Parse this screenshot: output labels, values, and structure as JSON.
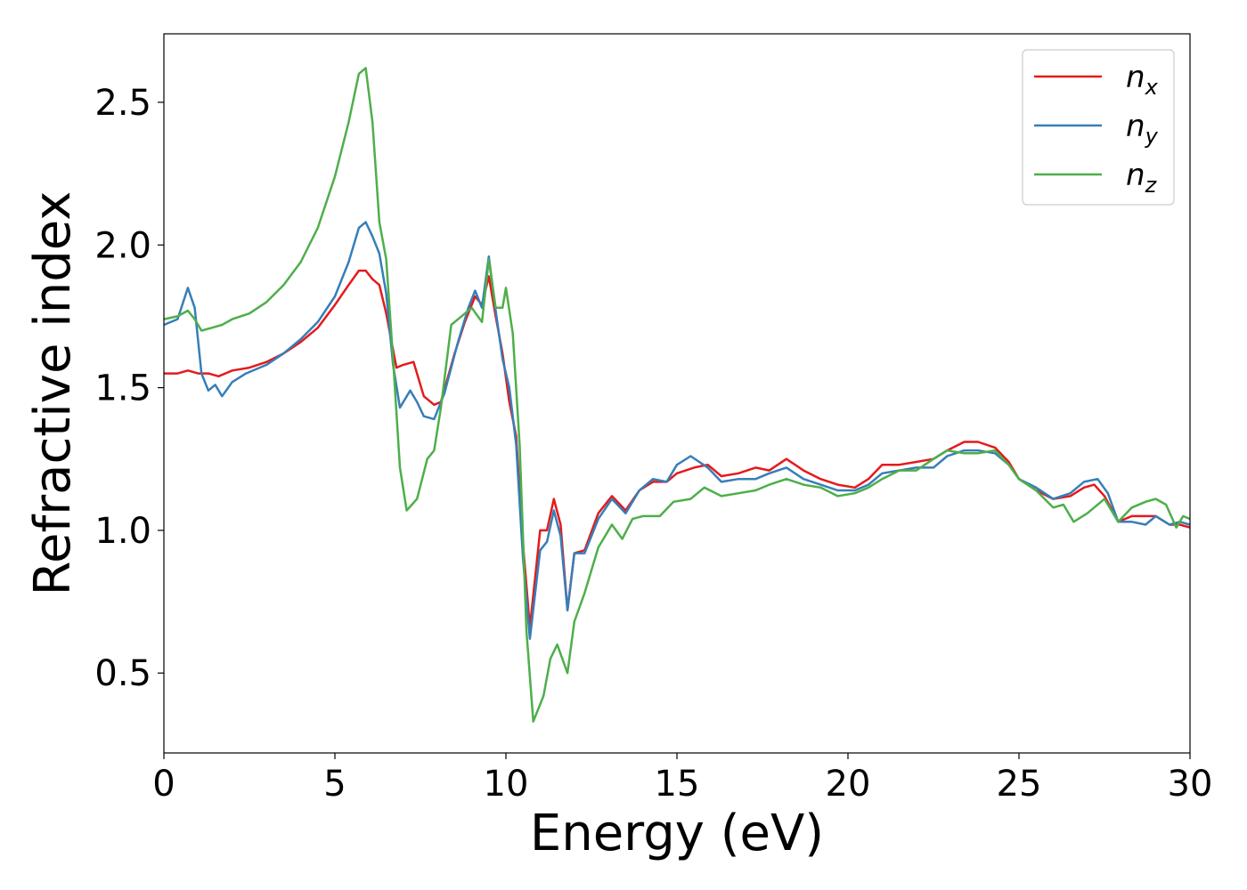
{
  "chart_data": {
    "type": "line",
    "title": "",
    "xlabel": "Energy (eV)",
    "ylabel": "Refractive index",
    "xlim": [
      0,
      30
    ],
    "ylim": [
      0.22,
      2.74
    ],
    "xticks": [
      0,
      5,
      10,
      15,
      20,
      25,
      30
    ],
    "xtick_labels": [
      "0",
      "5",
      "10",
      "15",
      "20",
      "25",
      "30"
    ],
    "yticks": [
      0.5,
      1.0,
      1.5,
      2.0,
      2.5
    ],
    "ytick_labels": [
      "0.5",
      "1.0",
      "1.5",
      "2.0",
      "2.5"
    ],
    "grid": false,
    "legend_position": "top-right",
    "series": [
      {
        "name": "n",
        "subscript": "x",
        "color": "#e41a1c",
        "points": [
          [
            0,
            1.55
          ],
          [
            0.4,
            1.55
          ],
          [
            0.7,
            1.56
          ],
          [
            1.0,
            1.55
          ],
          [
            1.3,
            1.55
          ],
          [
            1.6,
            1.54
          ],
          [
            2.0,
            1.56
          ],
          [
            2.5,
            1.57
          ],
          [
            3.0,
            1.59
          ],
          [
            3.5,
            1.62
          ],
          [
            4.0,
            1.66
          ],
          [
            4.5,
            1.71
          ],
          [
            5.0,
            1.79
          ],
          [
            5.4,
            1.86
          ],
          [
            5.7,
            1.91
          ],
          [
            5.9,
            1.91
          ],
          [
            6.1,
            1.88
          ],
          [
            6.3,
            1.86
          ],
          [
            6.5,
            1.76
          ],
          [
            6.8,
            1.57
          ],
          [
            7.0,
            1.58
          ],
          [
            7.3,
            1.59
          ],
          [
            7.6,
            1.47
          ],
          [
            7.9,
            1.44
          ],
          [
            8.1,
            1.45
          ],
          [
            8.5,
            1.62
          ],
          [
            8.8,
            1.73
          ],
          [
            9.1,
            1.82
          ],
          [
            9.3,
            1.79
          ],
          [
            9.5,
            1.89
          ],
          [
            9.7,
            1.75
          ],
          [
            9.9,
            1.62
          ],
          [
            10.1,
            1.45
          ],
          [
            10.3,
            1.33
          ],
          [
            10.5,
            0.95
          ],
          [
            10.7,
            0.66
          ],
          [
            11.0,
            1.0
          ],
          [
            11.2,
            1.0
          ],
          [
            11.4,
            1.11
          ],
          [
            11.6,
            1.02
          ],
          [
            11.8,
            0.72
          ],
          [
            12.0,
            0.92
          ],
          [
            12.3,
            0.93
          ],
          [
            12.7,
            1.06
          ],
          [
            13.1,
            1.12
          ],
          [
            13.5,
            1.07
          ],
          [
            13.9,
            1.14
          ],
          [
            14.3,
            1.17
          ],
          [
            14.7,
            1.17
          ],
          [
            15.0,
            1.2
          ],
          [
            15.5,
            1.22
          ],
          [
            15.9,
            1.23
          ],
          [
            16.3,
            1.19
          ],
          [
            16.8,
            1.2
          ],
          [
            17.3,
            1.22
          ],
          [
            17.7,
            1.21
          ],
          [
            18.2,
            1.25
          ],
          [
            18.7,
            1.21
          ],
          [
            19.2,
            1.18
          ],
          [
            19.7,
            1.16
          ],
          [
            20.2,
            1.15
          ],
          [
            20.6,
            1.18
          ],
          [
            21.0,
            1.23
          ],
          [
            21.5,
            1.23
          ],
          [
            22.0,
            1.24
          ],
          [
            22.5,
            1.25
          ],
          [
            22.9,
            1.28
          ],
          [
            23.4,
            1.31
          ],
          [
            23.8,
            1.31
          ],
          [
            24.3,
            1.29
          ],
          [
            24.7,
            1.24
          ],
          [
            25.0,
            1.18
          ],
          [
            25.5,
            1.14
          ],
          [
            26.0,
            1.11
          ],
          [
            26.5,
            1.12
          ],
          [
            26.9,
            1.15
          ],
          [
            27.2,
            1.16
          ],
          [
            27.5,
            1.12
          ],
          [
            27.9,
            1.03
          ],
          [
            28.3,
            1.05
          ],
          [
            28.7,
            1.05
          ],
          [
            29.0,
            1.05
          ],
          [
            29.4,
            1.02
          ],
          [
            29.7,
            1.02
          ],
          [
            30.0,
            1.01
          ]
        ]
      },
      {
        "name": "n",
        "subscript": "y",
        "color": "#377eb8",
        "points": [
          [
            0,
            1.72
          ],
          [
            0.4,
            1.74
          ],
          [
            0.7,
            1.85
          ],
          [
            0.9,
            1.78
          ],
          [
            1.1,
            1.55
          ],
          [
            1.3,
            1.49
          ],
          [
            1.5,
            1.51
          ],
          [
            1.7,
            1.47
          ],
          [
            2.0,
            1.52
          ],
          [
            2.4,
            1.55
          ],
          [
            3.0,
            1.58
          ],
          [
            3.5,
            1.62
          ],
          [
            4.0,
            1.67
          ],
          [
            4.5,
            1.73
          ],
          [
            5.0,
            1.82
          ],
          [
            5.4,
            1.94
          ],
          [
            5.7,
            2.06
          ],
          [
            5.9,
            2.08
          ],
          [
            6.1,
            2.03
          ],
          [
            6.3,
            1.97
          ],
          [
            6.5,
            1.83
          ],
          [
            6.7,
            1.58
          ],
          [
            6.9,
            1.43
          ],
          [
            7.2,
            1.49
          ],
          [
            7.4,
            1.45
          ],
          [
            7.6,
            1.4
          ],
          [
            7.9,
            1.39
          ],
          [
            8.2,
            1.48
          ],
          [
            8.6,
            1.66
          ],
          [
            8.9,
            1.78
          ],
          [
            9.1,
            1.84
          ],
          [
            9.3,
            1.78
          ],
          [
            9.5,
            1.96
          ],
          [
            9.7,
            1.77
          ],
          [
            9.9,
            1.6
          ],
          [
            10.1,
            1.5
          ],
          [
            10.3,
            1.3
          ],
          [
            10.5,
            0.9
          ],
          [
            10.7,
            0.62
          ],
          [
            11.0,
            0.93
          ],
          [
            11.2,
            0.96
          ],
          [
            11.4,
            1.07
          ],
          [
            11.6,
            0.98
          ],
          [
            11.8,
            0.72
          ],
          [
            12.0,
            0.92
          ],
          [
            12.3,
            0.92
          ],
          [
            12.7,
            1.04
          ],
          [
            13.1,
            1.11
          ],
          [
            13.5,
            1.06
          ],
          [
            13.9,
            1.14
          ],
          [
            14.3,
            1.18
          ],
          [
            14.7,
            1.17
          ],
          [
            15.0,
            1.23
          ],
          [
            15.4,
            1.26
          ],
          [
            15.9,
            1.22
          ],
          [
            16.3,
            1.17
          ],
          [
            16.8,
            1.18
          ],
          [
            17.3,
            1.18
          ],
          [
            17.7,
            1.2
          ],
          [
            18.2,
            1.22
          ],
          [
            18.7,
            1.18
          ],
          [
            19.2,
            1.16
          ],
          [
            19.7,
            1.14
          ],
          [
            20.2,
            1.14
          ],
          [
            20.6,
            1.16
          ],
          [
            21.0,
            1.2
          ],
          [
            21.5,
            1.21
          ],
          [
            22.0,
            1.22
          ],
          [
            22.5,
            1.22
          ],
          [
            22.9,
            1.26
          ],
          [
            23.4,
            1.28
          ],
          [
            23.8,
            1.28
          ],
          [
            24.3,
            1.27
          ],
          [
            24.7,
            1.23
          ],
          [
            25.0,
            1.18
          ],
          [
            25.5,
            1.15
          ],
          [
            26.0,
            1.11
          ],
          [
            26.5,
            1.13
          ],
          [
            26.9,
            1.17
          ],
          [
            27.3,
            1.18
          ],
          [
            27.6,
            1.13
          ],
          [
            27.9,
            1.03
          ],
          [
            28.3,
            1.03
          ],
          [
            28.7,
            1.02
          ],
          [
            29.0,
            1.05
          ],
          [
            29.4,
            1.02
          ],
          [
            29.7,
            1.03
          ],
          [
            30.0,
            1.02
          ]
        ]
      },
      {
        "name": "n",
        "subscript": "z",
        "color": "#4daf4a",
        "points": [
          [
            0,
            1.74
          ],
          [
            0.4,
            1.75
          ],
          [
            0.7,
            1.77
          ],
          [
            0.9,
            1.74
          ],
          [
            1.1,
            1.7
          ],
          [
            1.4,
            1.71
          ],
          [
            1.7,
            1.72
          ],
          [
            2.0,
            1.74
          ],
          [
            2.5,
            1.76
          ],
          [
            3.0,
            1.8
          ],
          [
            3.5,
            1.86
          ],
          [
            4.0,
            1.94
          ],
          [
            4.5,
            2.06
          ],
          [
            5.0,
            2.24
          ],
          [
            5.4,
            2.43
          ],
          [
            5.7,
            2.6
          ],
          [
            5.9,
            2.62
          ],
          [
            6.1,
            2.43
          ],
          [
            6.3,
            2.08
          ],
          [
            6.5,
            1.95
          ],
          [
            6.7,
            1.6
          ],
          [
            6.9,
            1.22
          ],
          [
            7.1,
            1.07
          ],
          [
            7.4,
            1.11
          ],
          [
            7.7,
            1.25
          ],
          [
            7.9,
            1.28
          ],
          [
            8.1,
            1.43
          ],
          [
            8.4,
            1.72
          ],
          [
            8.7,
            1.75
          ],
          [
            9.0,
            1.78
          ],
          [
            9.3,
            1.73
          ],
          [
            9.5,
            1.95
          ],
          [
            9.7,
            1.78
          ],
          [
            9.9,
            1.78
          ],
          [
            10.0,
            1.85
          ],
          [
            10.2,
            1.69
          ],
          [
            10.4,
            1.3
          ],
          [
            10.6,
            0.65
          ],
          [
            10.8,
            0.33
          ],
          [
            11.1,
            0.42
          ],
          [
            11.3,
            0.55
          ],
          [
            11.5,
            0.6
          ],
          [
            11.8,
            0.5
          ],
          [
            12.0,
            0.68
          ],
          [
            12.3,
            0.78
          ],
          [
            12.7,
            0.94
          ],
          [
            13.1,
            1.02
          ],
          [
            13.4,
            0.97
          ],
          [
            13.7,
            1.04
          ],
          [
            14.0,
            1.05
          ],
          [
            14.5,
            1.05
          ],
          [
            14.9,
            1.1
          ],
          [
            15.4,
            1.11
          ],
          [
            15.8,
            1.15
          ],
          [
            16.3,
            1.12
          ],
          [
            16.8,
            1.13
          ],
          [
            17.3,
            1.14
          ],
          [
            17.7,
            1.16
          ],
          [
            18.2,
            1.18
          ],
          [
            18.7,
            1.16
          ],
          [
            19.2,
            1.15
          ],
          [
            19.7,
            1.12
          ],
          [
            20.2,
            1.13
          ],
          [
            20.6,
            1.15
          ],
          [
            21.0,
            1.18
          ],
          [
            21.5,
            1.21
          ],
          [
            22.0,
            1.21
          ],
          [
            22.5,
            1.25
          ],
          [
            22.9,
            1.28
          ],
          [
            23.4,
            1.27
          ],
          [
            23.8,
            1.27
          ],
          [
            24.3,
            1.28
          ],
          [
            24.7,
            1.23
          ],
          [
            25.0,
            1.18
          ],
          [
            25.5,
            1.14
          ],
          [
            26.0,
            1.08
          ],
          [
            26.3,
            1.09
          ],
          [
            26.6,
            1.03
          ],
          [
            27.0,
            1.06
          ],
          [
            27.5,
            1.11
          ],
          [
            27.9,
            1.03
          ],
          [
            28.3,
            1.08
          ],
          [
            28.7,
            1.1
          ],
          [
            29.0,
            1.11
          ],
          [
            29.3,
            1.09
          ],
          [
            29.6,
            1.01
          ],
          [
            29.8,
            1.05
          ],
          [
            30.0,
            1.04
          ]
        ]
      }
    ]
  }
}
